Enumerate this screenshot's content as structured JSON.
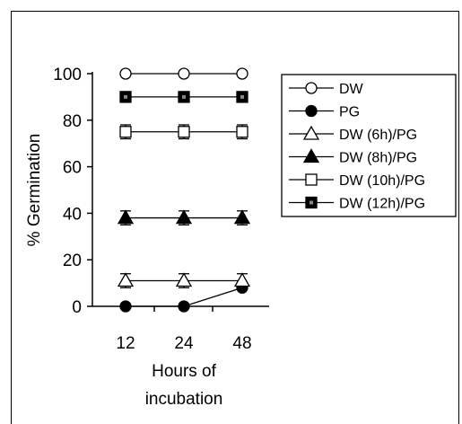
{
  "chart_data": {
    "type": "line",
    "x": [
      "12",
      "24",
      "48"
    ],
    "xlabel": [
      "Hours of",
      "incubation"
    ],
    "ylabel": "% Germination",
    "ylim": [
      0,
      100
    ],
    "yticks": [
      0,
      20,
      40,
      60,
      80,
      100
    ],
    "grid": false,
    "legend_position": "right",
    "series": [
      {
        "name": "DW",
        "values": [
          100,
          100,
          100
        ],
        "marker": "circle-open",
        "err": [
          0,
          0,
          0
        ]
      },
      {
        "name": "PG",
        "values": [
          0,
          0,
          8
        ],
        "marker": "circle-filled",
        "err": [
          0,
          0,
          0
        ]
      },
      {
        "name": "DW (6h)/PG",
        "values": [
          11,
          11,
          11
        ],
        "marker": "triangle-open",
        "err": [
          3,
          3,
          3
        ]
      },
      {
        "name": "DW (8h)/PG",
        "values": [
          38,
          38,
          38
        ],
        "marker": "triangle-filled",
        "err": [
          3,
          3,
          3
        ]
      },
      {
        "name": "DW (10h)/PG",
        "values": [
          75,
          75,
          75
        ],
        "marker": "square-open",
        "err": [
          3,
          3,
          3
        ]
      },
      {
        "name": "DW (12h)/PG",
        "values": [
          90,
          90,
          90
        ],
        "marker": "square-filled",
        "err": [
          2,
          2,
          2
        ]
      }
    ]
  }
}
